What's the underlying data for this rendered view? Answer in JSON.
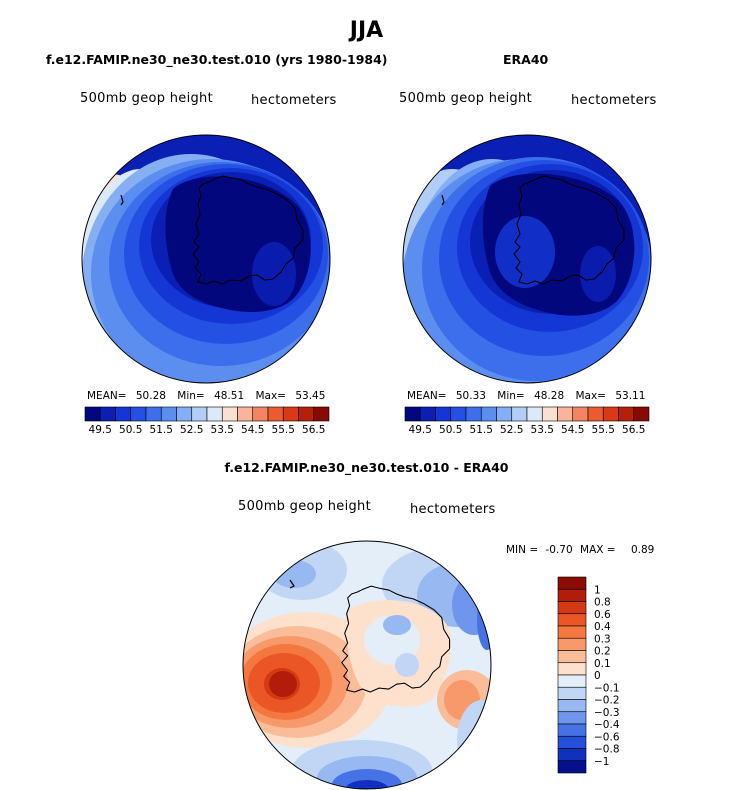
{
  "figure": {
    "title": "JJA"
  },
  "panels": [
    {
      "id": "model",
      "title": "f.e12.FAMIP.ne30_ne30.test.010 (yrs 1980-1984)",
      "variable_label": "500mb geop height",
      "units_label": "hectometers",
      "stats": {
        "mean_label": "MEAN=",
        "mean": "50.28",
        "min_label": "Min=",
        "min": "48.51",
        "max_label": "Max=",
        "max": "53.45"
      }
    },
    {
      "id": "obs",
      "title": "ERA40",
      "variable_label": "500mb geop height",
      "units_label": "hectometers",
      "stats": {
        "mean_label": "MEAN=",
        "mean": "50.33",
        "min_label": "Min=",
        "min": "48.28",
        "max_label": "Max=",
        "max": "53.11"
      }
    },
    {
      "id": "diff",
      "title": "f.e12.FAMIP.ne30_ne30.test.010 - ERA40",
      "variable_label": "500mb geop height",
      "units_label": "hectometers",
      "stats": {
        "min_label": "MIN =",
        "min": "-0.70",
        "max_label": "MAX =",
        "max": "0.89"
      }
    }
  ],
  "chart_data": [
    {
      "type": "heatmap",
      "projection": "polar stereographic (south pole)",
      "title": "f.e12.FAMIP.ne30_ne30.test.010 (yrs 1980-1984)",
      "variable": "500mb geop height",
      "units": "hectometers",
      "mean": 50.28,
      "min": 48.51,
      "max": 53.45,
      "colorbar": {
        "orientation": "horizontal",
        "levels": [
          49.5,
          50,
          50.5,
          51,
          51.5,
          52,
          52.5,
          53,
          53.5,
          54,
          54.5,
          55,
          55.5,
          56,
          56.5
        ],
        "tick_labels": [
          "49.5",
          "50.5",
          "51.5",
          "52.5",
          "53.5",
          "54.5",
          "55.5",
          "56.5"
        ],
        "colors": [
          "#03077e",
          "#0a1fb4",
          "#1436d4",
          "#2451e4",
          "#3d6eec",
          "#5c8ef0",
          "#86aef3",
          "#b2cdf6",
          "#dde9f8",
          "#fbe0d1",
          "#f9b49a",
          "#f68462",
          "#ec5a2e",
          "#d83a14",
          "#b5200c",
          "#870b05"
        ]
      }
    },
    {
      "type": "heatmap",
      "projection": "polar stereographic (south pole)",
      "title": "ERA40",
      "variable": "500mb geop height",
      "units": "hectometers",
      "mean": 50.33,
      "min": 48.28,
      "max": 53.11,
      "colorbar": {
        "orientation": "horizontal",
        "levels": [
          49.5,
          50,
          50.5,
          51,
          51.5,
          52,
          52.5,
          53,
          53.5,
          54,
          54.5,
          55,
          55.5,
          56,
          56.5
        ],
        "tick_labels": [
          "49.5",
          "50.5",
          "51.5",
          "52.5",
          "53.5",
          "54.5",
          "55.5",
          "56.5"
        ],
        "colors": [
          "#03077e",
          "#0a1fb4",
          "#1436d4",
          "#2451e4",
          "#3d6eec",
          "#5c8ef0",
          "#86aef3",
          "#b2cdf6",
          "#dde9f8",
          "#fbe0d1",
          "#f9b49a",
          "#f68462",
          "#ec5a2e",
          "#d83a14",
          "#b5200c",
          "#870b05"
        ]
      }
    },
    {
      "type": "heatmap",
      "projection": "polar stereographic (south pole)",
      "title": "f.e12.FAMIP.ne30_ne30.test.010 - ERA40",
      "variable": "500mb geop height",
      "units": "hectometers",
      "min": -0.7,
      "max": 0.89,
      "colorbar": {
        "orientation": "vertical",
        "labels_top_to_bottom": [
          "1",
          "0.8",
          "0.6",
          "0.4",
          "0.3",
          "0.2",
          "0.1",
          "0",
          "−0.1",
          "−0.2",
          "−0.3",
          "−0.4",
          "−0.6",
          "−0.8",
          "−1"
        ],
        "colors_top_to_bottom": [
          "#8a0c04",
          "#b11d0a",
          "#d33912",
          "#ea5626",
          "#f4773f",
          "#f8996b",
          "#fbbd99",
          "#fde1cc",
          "#e4eef9",
          "#c1d6f5",
          "#98b8f1",
          "#6f95ec",
          "#4772e5",
          "#2450da",
          "#1030bd",
          "#05108f"
        ]
      }
    }
  ]
}
